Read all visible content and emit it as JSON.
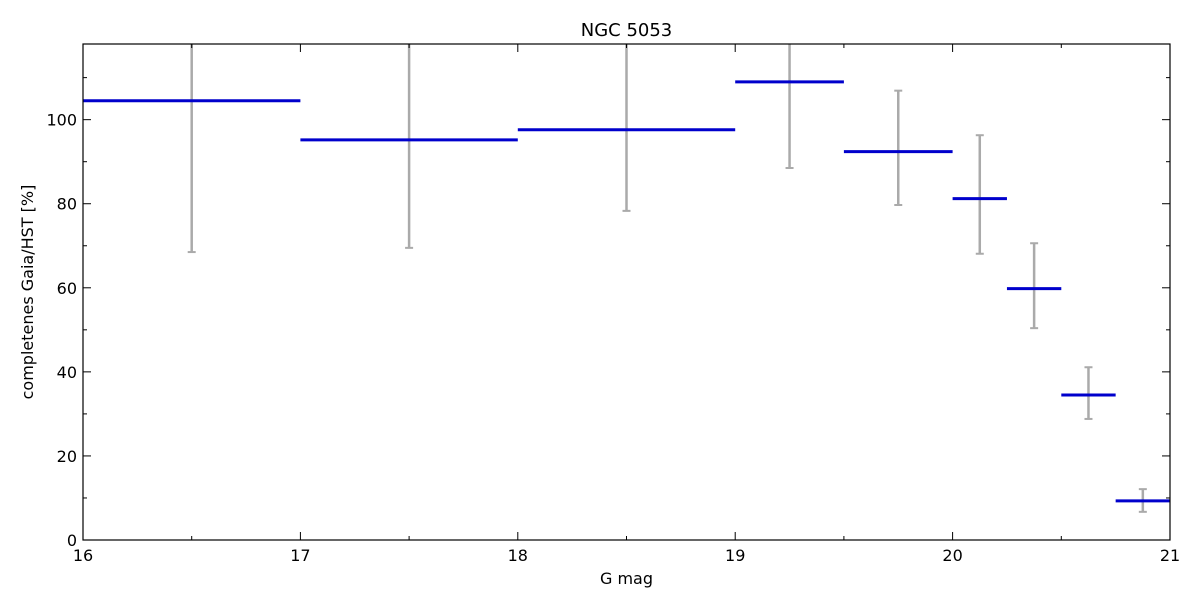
{
  "chart_data": {
    "type": "scatter",
    "title": "NGC 5053",
    "xlabel": "G mag",
    "ylabel": "completenes Gaia/HST [%]",
    "xlim": [
      16,
      21
    ],
    "ylim": [
      0,
      118
    ],
    "xticks": [
      "16",
      "17",
      "18",
      "19",
      "20",
      "21"
    ],
    "yticks": [
      "0",
      "20",
      "40",
      "60",
      "80",
      "100"
    ],
    "grid": false,
    "series": [
      {
        "color": "#0000cc",
        "errorbar_color": "#aaaaaa",
        "bins": [
          {
            "x_low": 16.0,
            "x_high": 17.0,
            "x": 16.5,
            "y": 104.5,
            "y_err_low": 68.5,
            "y_err_high": 118
          },
          {
            "x_low": 17.0,
            "x_high": 18.0,
            "x": 17.5,
            "y": 95.2,
            "y_err_low": 69.5,
            "y_err_high": 118
          },
          {
            "x_low": 18.0,
            "x_high": 19.0,
            "x": 18.5,
            "y": 97.6,
            "y_err_low": 78.3,
            "y_err_high": 118
          },
          {
            "x_low": 19.0,
            "x_high": 19.5,
            "x": 19.25,
            "y": 109.0,
            "y_err_low": 88.5,
            "y_err_high": 118
          },
          {
            "x_low": 19.5,
            "x_high": 20.0,
            "x": 19.75,
            "y": 92.4,
            "y_err_low": 79.7,
            "y_err_high": 106.9
          },
          {
            "x_low": 20.0,
            "x_high": 20.25,
            "x": 20.125,
            "y": 81.2,
            "y_err_low": 68.1,
            "y_err_high": 96.3
          },
          {
            "x_low": 20.25,
            "x_high": 20.5,
            "x": 20.375,
            "y": 59.8,
            "y_err_low": 50.4,
            "y_err_high": 70.6
          },
          {
            "x_low": 20.5,
            "x_high": 20.75,
            "x": 20.625,
            "y": 34.5,
            "y_err_low": 28.8,
            "y_err_high": 41.1
          },
          {
            "x_low": 20.75,
            "x_high": 21.0,
            "x": 20.875,
            "y": 9.3,
            "y_err_low": 6.7,
            "y_err_high": 12.1
          }
        ]
      }
    ]
  }
}
